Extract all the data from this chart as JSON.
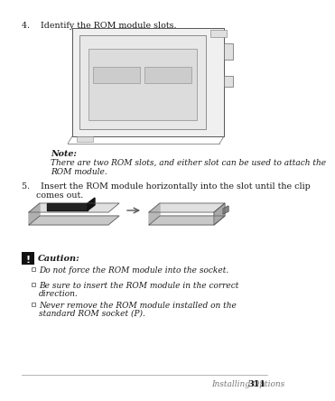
{
  "bg_color": "#ffffff",
  "text_color": "#1a1a1a",
  "gray_color": "#777777",
  "line_color": "#aaaaaa",
  "step4_text": "4.    Identify the ROM module slots.",
  "note_label": "Note:",
  "note_line1": "There are two ROM slots, and either slot can be used to attach the",
  "note_line2": "ROM module.",
  "step5_text": "5.    Insert the ROM module horizontally into the slot until the clip",
  "step5_line2": "comes out.",
  "caution_label": "Caution:",
  "caution_item1": "Do not force the ROM module into the socket.",
  "caution_item2a": "Be sure to insert the ROM module in the correct",
  "caution_item2b": "direction.",
  "caution_item3a": "Never remove the ROM module installed on the",
  "caution_item3b": "standard ROM socket (P).",
  "footer_italic": "Installing Options",
  "footer_bold": "311"
}
